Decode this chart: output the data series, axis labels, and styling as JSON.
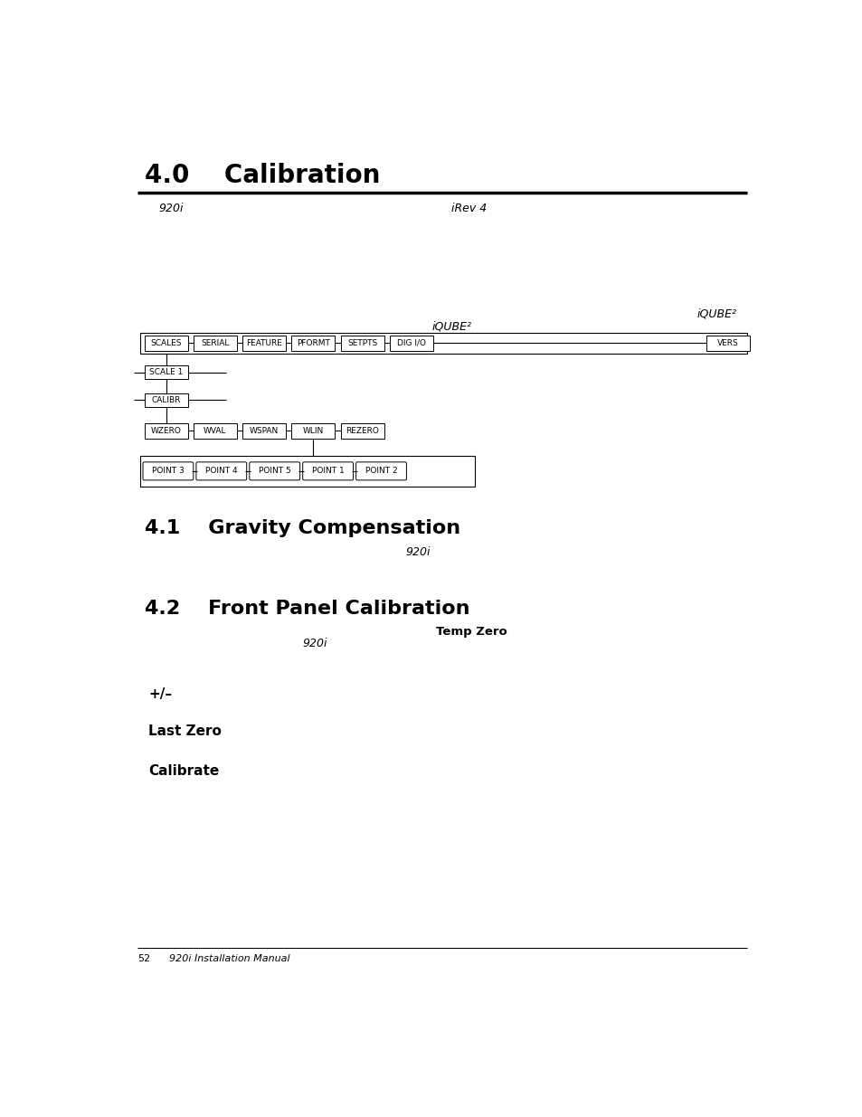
{
  "title_40": "4.0    Calibration",
  "title_41": "4.1    Gravity Compensation",
  "title_42": "4.2    Front Panel Calibration",
  "sub_920i_top": "920i",
  "sub_irev4": "iRev 4",
  "sub_iqube2_topright": "iQUBE²",
  "sub_iqube2_center": "iQUBE²",
  "row1_labels": [
    "SCALES",
    "SERIAL",
    "FEATURE",
    "PFORMT",
    "SETPTS",
    "DIG I/O",
    "VERS"
  ],
  "row4_labels": [
    "WZERO",
    "WVAL",
    "WSPAN",
    "WLIN",
    "REZERO"
  ],
  "row5_labels": [
    "POINT 3",
    "POINT 4",
    "POINT 5",
    "POINT 1",
    "POINT 2"
  ],
  "label_920i_gravity": "920i",
  "label_920i_front": "920i",
  "label_temp_zero": "Temp Zero",
  "label_plus_minus": "+/–",
  "label_last_zero": "Last Zero",
  "label_calibrate": "Calibrate",
  "footer_page": "52",
  "footer_text": "920i Installation Manual",
  "bg_color": "#ffffff",
  "text_color": "#000000"
}
